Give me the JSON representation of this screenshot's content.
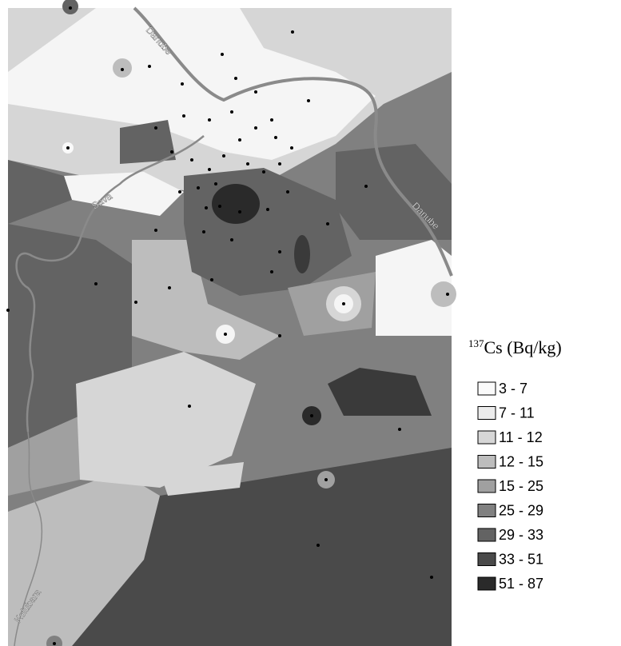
{
  "map": {
    "rivers": [
      "Danube",
      "Danube",
      "Sava",
      "Kolubara"
    ],
    "legend": {
      "title": {
        "superscript": "137",
        "text": "Cs (Bq/kg)"
      },
      "items": [
        {
          "label": "3 - 7",
          "color": "#fafafa"
        },
        {
          "label": "7 - 11",
          "color": "#ececec"
        },
        {
          "label": "11 - 12",
          "color": "#d6d6d6"
        },
        {
          "label": "12 - 15",
          "color": "#bdbdbd"
        },
        {
          "label": "15 - 25",
          "color": "#a0a0a0"
        },
        {
          "label": "25 - 29",
          "color": "#808080"
        },
        {
          "label": "29 - 33",
          "color": "#636363"
        },
        {
          "label": "33 - 51",
          "color": "#4a4a4a"
        },
        {
          "label": "51 - 87",
          "color": "#2a2a2a"
        }
      ]
    }
  }
}
